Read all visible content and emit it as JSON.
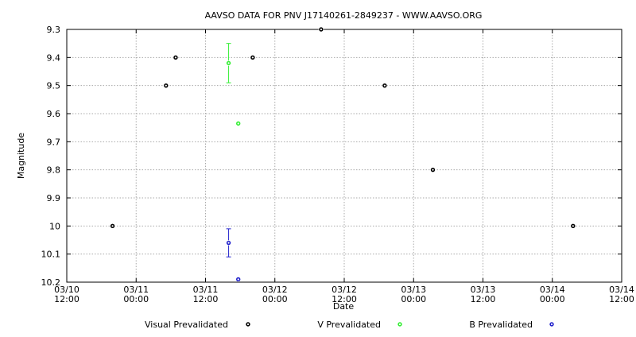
{
  "chart_data": {
    "type": "scatter",
    "title": "AAVSO DATA FOR PNV J17140261-2849237 - WWW.AAVSO.ORG",
    "xlabel": "Date",
    "ylabel": "Magnitude",
    "x_ticks": [
      {
        "x": "2012-03-10T12:00",
        "line1": "03/10",
        "line2": "12:00"
      },
      {
        "x": "2012-03-11T00:00",
        "line1": "03/11",
        "line2": "00:00"
      },
      {
        "x": "2012-03-11T12:00",
        "line1": "03/11",
        "line2": "12:00"
      },
      {
        "x": "2012-03-12T00:00",
        "line1": "03/12",
        "line2": "00:00"
      },
      {
        "x": "2012-03-12T12:00",
        "line1": "03/12",
        "line2": "12:00"
      },
      {
        "x": "2012-03-13T00:00",
        "line1": "03/13",
        "line2": "00:00"
      },
      {
        "x": "2012-03-13T12:00",
        "line1": "03/13",
        "line2": "12:00"
      },
      {
        "x": "2012-03-14T00:00",
        "line1": "03/14",
        "line2": "00:00"
      },
      {
        "x": "2012-03-14T12:00",
        "line1": "03/14",
        "line2": "12:00"
      }
    ],
    "xlim": [
      "2012-03-10T12:00",
      "2012-03-14T12:00"
    ],
    "ylim": [
      9.3,
      10.2
    ],
    "y_inverted": true,
    "y_ticks": [
      "9.3",
      "9.4",
      "9.5",
      "9.6",
      "9.7",
      "9.8",
      "9.9",
      "10",
      "10.1",
      "10.2"
    ],
    "grid": true,
    "legend_position": "bottom",
    "series": [
      {
        "name": "Visual Prevalidated",
        "color": "#000000",
        "points": [
          {
            "x": "2012-03-10T19:55",
            "y": 10.0
          },
          {
            "x": "2012-03-11T05:10",
            "y": 9.5
          },
          {
            "x": "2012-03-11T06:50",
            "y": 9.4
          },
          {
            "x": "2012-03-11T20:10",
            "y": 9.4
          },
          {
            "x": "2012-03-12T08:00",
            "y": 9.3
          },
          {
            "x": "2012-03-12T19:00",
            "y": 9.5
          },
          {
            "x": "2012-03-13T03:20",
            "y": 9.8
          },
          {
            "x": "2012-03-14T03:35",
            "y": 10.0
          }
        ]
      },
      {
        "name": "V Prevalidated",
        "color": "#33ee33",
        "points": [
          {
            "x": "2012-03-11T16:00",
            "y": 9.42,
            "err": 0.07
          },
          {
            "x": "2012-03-11T17:40",
            "y": 9.635
          }
        ]
      },
      {
        "name": "B Prevalidated",
        "color": "#2222cc",
        "points": [
          {
            "x": "2012-03-11T16:00",
            "y": 10.06,
            "err": 0.05
          },
          {
            "x": "2012-03-11T17:40",
            "y": 10.19
          }
        ]
      }
    ]
  }
}
